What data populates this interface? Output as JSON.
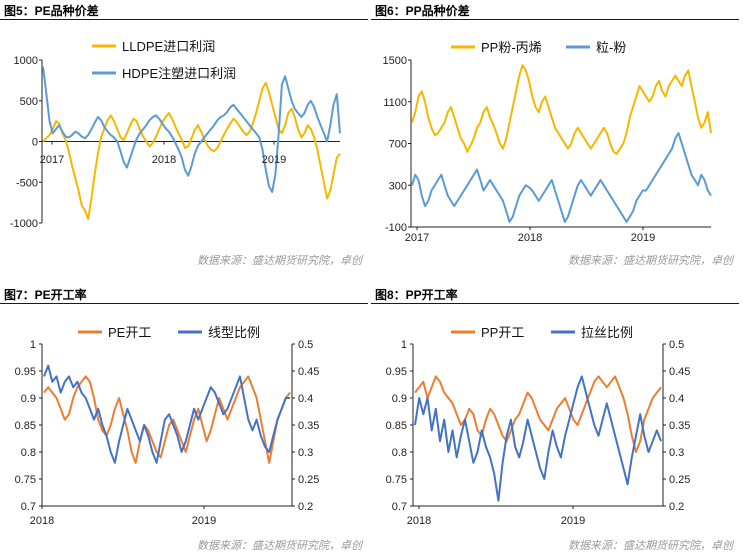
{
  "source_note": "数据来源：盛达期货研究院，卓创",
  "chart_data": [
    {
      "type": "line",
      "title": "图5：PE品种价差",
      "x_ticks": [
        "2017",
        "2018",
        "2019"
      ],
      "y_ticks": [
        "1000",
        "500",
        "0",
        "-500",
        "-1000"
      ],
      "ylim": [
        -1000,
        1000
      ],
      "legend_placement": "top-left",
      "series": [
        {
          "name": "LLDPE进口利润",
          "color": "#F5B800",
          "values": [
            0,
            40,
            80,
            150,
            250,
            220,
            100,
            20,
            -120,
            -300,
            -450,
            -600,
            -780,
            -850,
            -950,
            -700,
            -400,
            -150,
            50,
            160,
            260,
            320,
            250,
            150,
            50,
            20,
            100,
            200,
            280,
            250,
            150,
            60,
            0,
            -60,
            -20,
            60,
            150,
            240,
            300,
            350,
            280,
            180,
            100,
            20,
            -80,
            -60,
            40,
            140,
            200,
            120,
            30,
            -50,
            -100,
            -120,
            -80,
            0,
            80,
            150,
            220,
            280,
            240,
            180,
            120,
            80,
            120,
            220,
            350,
            500,
            650,
            720,
            600,
            450,
            300,
            150,
            100,
            200,
            350,
            400,
            300,
            150,
            50,
            100,
            200,
            150,
            50,
            -100,
            -300,
            -500,
            -700,
            -600,
            -400,
            -200,
            -150
          ]
        },
        {
          "name": "HDPE注塑进口利润",
          "color": "#5B9BD5",
          "values": [
            920,
            600,
            250,
            100,
            150,
            200,
            120,
            60,
            50,
            80,
            120,
            100,
            60,
            40,
            80,
            150,
            230,
            300,
            260,
            180,
            120,
            80,
            50,
            0,
            -120,
            -250,
            -320,
            -200,
            -80,
            30,
            100,
            150,
            200,
            260,
            300,
            320,
            280,
            220,
            160,
            120,
            60,
            -20,
            -100,
            -200,
            -350,
            -420,
            -300,
            -150,
            -50,
            0,
            50,
            100,
            150,
            200,
            260,
            300,
            320,
            360,
            420,
            450,
            400,
            350,
            300,
            250,
            200,
            150,
            100,
            50,
            -100,
            -350,
            -550,
            -620,
            -400,
            100,
            700,
            800,
            650,
            500,
            400,
            350,
            300,
            350,
            450,
            500,
            420,
            300,
            200,
            100,
            0,
            200,
            450,
            580,
            100
          ]
        }
      ]
    },
    {
      "type": "line",
      "title": "图6：PP品种价差",
      "x_ticks": [
        "2017",
        "2018",
        "2019"
      ],
      "y_ticks": [
        "1500",
        "1100",
        "700",
        "300",
        "-100"
      ],
      "ylim": [
        -100,
        1500
      ],
      "legend_placement": "top",
      "series": [
        {
          "name": "PP粉-丙烯",
          "color": "#F5B800",
          "values": [
            900,
            1000,
            1150,
            1200,
            1100,
            950,
            850,
            780,
            800,
            850,
            900,
            1000,
            1050,
            950,
            850,
            750,
            700,
            620,
            680,
            750,
            850,
            900,
            1000,
            1050,
            950,
            880,
            800,
            700,
            650,
            750,
            900,
            1050,
            1200,
            1350,
            1450,
            1400,
            1300,
            1150,
            1050,
            1000,
            1100,
            1150,
            1050,
            950,
            850,
            800,
            750,
            700,
            650,
            700,
            800,
            850,
            800,
            750,
            700,
            650,
            700,
            750,
            800,
            850,
            800,
            700,
            620,
            600,
            650,
            700,
            800,
            950,
            1050,
            1150,
            1250,
            1200,
            1150,
            1100,
            1150,
            1250,
            1300,
            1200,
            1150,
            1250,
            1300,
            1350,
            1300,
            1250,
            1350,
            1400,
            1250,
            1100,
            950,
            850,
            900,
            1000,
            800
          ]
        },
        {
          "name": "粒-粉",
          "color": "#5B9BD5",
          "values": [
            300,
            400,
            350,
            200,
            100,
            150,
            250,
            300,
            350,
            400,
            300,
            200,
            150,
            100,
            150,
            200,
            250,
            300,
            350,
            400,
            450,
            350,
            250,
            300,
            350,
            300,
            250,
            200,
            150,
            50,
            -50,
            0,
            100,
            200,
            250,
            300,
            280,
            250,
            200,
            150,
            200,
            250,
            300,
            350,
            250,
            150,
            50,
            -50,
            0,
            100,
            200,
            300,
            350,
            300,
            250,
            200,
            250,
            300,
            350,
            300,
            250,
            200,
            150,
            100,
            50,
            0,
            -50,
            0,
            50,
            150,
            200,
            250,
            250,
            300,
            350,
            400,
            450,
            500,
            550,
            600,
            650,
            750,
            800,
            700,
            600,
            500,
            400,
            350,
            300,
            400,
            350,
            250,
            200
          ]
        }
      ]
    },
    {
      "type": "line",
      "title": "图7：PE开工率",
      "x_ticks": [
        "2018",
        "2019"
      ],
      "y_ticks_left": [
        "1",
        "0.95",
        "0.9",
        "0.85",
        "0.8",
        "0.75",
        "0.7"
      ],
      "y_ticks_right": [
        "0.5",
        "0.45",
        "0.4",
        "0.35",
        "0.3",
        "0.25",
        "0.2"
      ],
      "ylim_left": [
        0.7,
        1.0
      ],
      "ylim_right": [
        0.2,
        0.5
      ],
      "legend_placement": "top",
      "series": [
        {
          "name": "PE开工",
          "axis": "left",
          "color": "#ED7D31",
          "values": [
            0.91,
            0.92,
            0.91,
            0.9,
            0.88,
            0.86,
            0.87,
            0.9,
            0.92,
            0.93,
            0.94,
            0.93,
            0.9,
            0.86,
            0.84,
            0.83,
            0.85,
            0.88,
            0.9,
            0.87,
            0.84,
            0.8,
            0.78,
            0.82,
            0.85,
            0.84,
            0.82,
            0.8,
            0.79,
            0.82,
            0.85,
            0.86,
            0.84,
            0.82,
            0.8,
            0.83,
            0.86,
            0.88,
            0.85,
            0.82,
            0.84,
            0.87,
            0.9,
            0.88,
            0.86,
            0.88,
            0.9,
            0.92,
            0.93,
            0.94,
            0.92,
            0.9,
            0.86,
            0.82,
            0.78,
            0.82,
            0.86,
            0.88,
            0.9,
            0.91
          ]
        },
        {
          "name": "线型比例",
          "axis": "right",
          "color": "#4472C4",
          "values": [
            0.44,
            0.46,
            0.43,
            0.44,
            0.41,
            0.43,
            0.44,
            0.42,
            0.43,
            0.41,
            0.4,
            0.38,
            0.36,
            0.38,
            0.35,
            0.33,
            0.3,
            0.28,
            0.32,
            0.35,
            0.38,
            0.36,
            0.34,
            0.32,
            0.35,
            0.33,
            0.3,
            0.28,
            0.32,
            0.36,
            0.37,
            0.35,
            0.33,
            0.3,
            0.32,
            0.35,
            0.38,
            0.36,
            0.38,
            0.4,
            0.42,
            0.41,
            0.39,
            0.37,
            0.38,
            0.4,
            0.42,
            0.44,
            0.4,
            0.36,
            0.34,
            0.36,
            0.33,
            0.31,
            0.3,
            0.33,
            0.36,
            0.38,
            0.4,
            0.4
          ]
        }
      ]
    },
    {
      "type": "line",
      "title": "图8：PP开工率",
      "x_ticks": [
        "2018",
        "2019"
      ],
      "y_ticks_left": [
        "1",
        "0.95",
        "0.9",
        "0.85",
        "0.8",
        "0.75",
        "0.7"
      ],
      "y_ticks_right": [
        "0.5",
        "0.45",
        "0.4",
        "0.35",
        "0.3",
        "0.25",
        "0.2"
      ],
      "ylim_left": [
        0.7,
        1.0
      ],
      "ylim_right": [
        0.2,
        0.5
      ],
      "legend_placement": "top",
      "series": [
        {
          "name": "PP开工",
          "axis": "left",
          "color": "#ED7D31",
          "values": [
            0.91,
            0.92,
            0.93,
            0.9,
            0.92,
            0.94,
            0.93,
            0.91,
            0.9,
            0.89,
            0.87,
            0.85,
            0.86,
            0.88,
            0.87,
            0.84,
            0.83,
            0.86,
            0.88,
            0.87,
            0.85,
            0.83,
            0.82,
            0.84,
            0.86,
            0.87,
            0.89,
            0.91,
            0.9,
            0.88,
            0.86,
            0.85,
            0.84,
            0.86,
            0.88,
            0.89,
            0.9,
            0.88,
            0.86,
            0.85,
            0.87,
            0.89,
            0.91,
            0.93,
            0.94,
            0.93,
            0.92,
            0.93,
            0.94,
            0.92,
            0.9,
            0.87,
            0.83,
            0.8,
            0.82,
            0.86,
            0.88,
            0.9,
            0.91,
            0.92
          ]
        },
        {
          "name": "拉丝比例",
          "axis": "right",
          "color": "#4472C4",
          "values": [
            0.35,
            0.4,
            0.37,
            0.4,
            0.34,
            0.38,
            0.32,
            0.36,
            0.3,
            0.34,
            0.29,
            0.33,
            0.36,
            0.32,
            0.28,
            0.3,
            0.34,
            0.31,
            0.29,
            0.26,
            0.21,
            0.28,
            0.33,
            0.36,
            0.31,
            0.29,
            0.32,
            0.36,
            0.33,
            0.3,
            0.27,
            0.25,
            0.3,
            0.34,
            0.31,
            0.29,
            0.33,
            0.36,
            0.39,
            0.42,
            0.44,
            0.41,
            0.38,
            0.35,
            0.33,
            0.36,
            0.39,
            0.36,
            0.33,
            0.3,
            0.27,
            0.24,
            0.29,
            0.33,
            0.37,
            0.33,
            0.3,
            0.32,
            0.34,
            0.32
          ]
        }
      ]
    }
  ]
}
